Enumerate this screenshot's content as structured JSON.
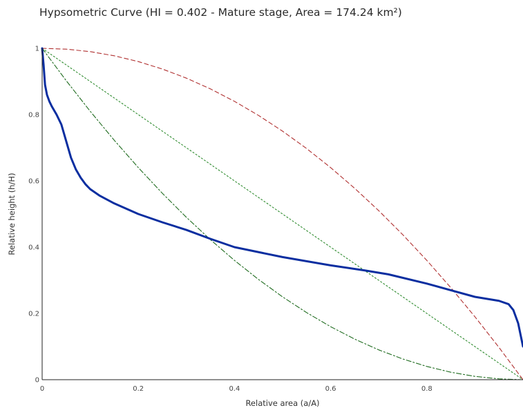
{
  "chart_data": {
    "type": "line",
    "title": "Hypsometric Curve (HI = 0.402 - Mature stage, Area = 174.24 km²)",
    "xlabel": "Relative area (a/A)",
    "ylabel": "Relative height (h/H)",
    "xlim": [
      0,
      1
    ],
    "ylim": [
      0,
      1
    ],
    "grid": false,
    "x_ticks": [
      "0",
      "0.2",
      "0.4",
      "0.6",
      "0.8"
    ],
    "y_ticks": [
      "0",
      "0.2",
      "0.4",
      "0.6",
      "0.8",
      "1"
    ],
    "series": [
      {
        "style": "solid",
        "color": "#0a2ea0",
        "x": [
          0.0,
          0.003,
          0.006,
          0.01,
          0.015,
          0.02,
          0.03,
          0.04,
          0.05,
          0.06,
          0.07,
          0.08,
          0.09,
          0.1,
          0.12,
          0.15,
          0.2,
          0.25,
          0.3,
          0.35,
          0.4,
          0.5,
          0.6,
          0.67,
          0.72,
          0.8,
          0.85,
          0.9,
          0.95,
          0.97,
          0.98,
          0.99,
          1.0
        ],
        "y": [
          1.0,
          0.95,
          0.89,
          0.86,
          0.84,
          0.825,
          0.8,
          0.77,
          0.72,
          0.67,
          0.635,
          0.61,
          0.59,
          0.575,
          0.555,
          0.532,
          0.5,
          0.475,
          0.452,
          0.425,
          0.4,
          0.37,
          0.345,
          0.33,
          0.318,
          0.29,
          0.27,
          0.25,
          0.238,
          0.228,
          0.21,
          0.17,
          0.1
        ]
      },
      {
        "style": "dashed",
        "color": "#b03030",
        "x": [
          0.0,
          0.05,
          0.1,
          0.15,
          0.2,
          0.25,
          0.3,
          0.35,
          0.4,
          0.45,
          0.5,
          0.55,
          0.6,
          0.65,
          0.7,
          0.75,
          0.8,
          0.85,
          0.9,
          0.95,
          1.0
        ],
        "y": [
          1.0,
          0.9975,
          0.99,
          0.9775,
          0.96,
          0.9375,
          0.91,
          0.8775,
          0.84,
          0.7975,
          0.75,
          0.6975,
          0.64,
          0.5775,
          0.51,
          0.4375,
          0.36,
          0.2775,
          0.19,
          0.0975,
          0.0
        ]
      },
      {
        "style": "dotted",
        "color": "#2e8b2e",
        "x": [
          0.0,
          1.0
        ],
        "y": [
          1.0,
          0.0
        ]
      },
      {
        "style": "dashdot",
        "color": "#1e6b1e",
        "x": [
          0.0,
          0.05,
          0.1,
          0.15,
          0.2,
          0.25,
          0.3,
          0.35,
          0.4,
          0.45,
          0.5,
          0.55,
          0.6,
          0.65,
          0.7,
          0.75,
          0.8,
          0.85,
          0.9,
          0.95,
          1.0
        ],
        "y": [
          1.0,
          0.9025,
          0.81,
          0.7225,
          0.64,
          0.5625,
          0.49,
          0.4225,
          0.36,
          0.3025,
          0.25,
          0.2025,
          0.16,
          0.1225,
          0.09,
          0.0625,
          0.04,
          0.0225,
          0.01,
          0.0025,
          0.0
        ]
      }
    ]
  }
}
